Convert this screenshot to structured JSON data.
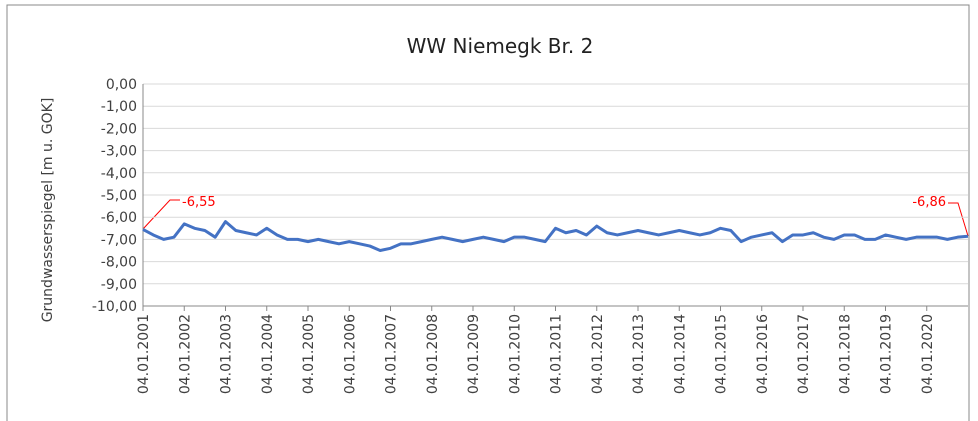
{
  "chart_data": {
    "type": "line",
    "title": "WW Niemegk Br. 2",
    "y_label": "Grundwasserspiegel [m u. GOK]",
    "categories": [
      "04.01.2001",
      null,
      null,
      null,
      "04.01.2002",
      null,
      null,
      null,
      "04.01.2003",
      null,
      null,
      null,
      "04.01.2004",
      null,
      null,
      null,
      "04.01.2005",
      null,
      null,
      null,
      "04.01.2006",
      null,
      null,
      null,
      "04.01.2007",
      null,
      null,
      null,
      "04.01.2008",
      null,
      null,
      null,
      "04.01.2009",
      null,
      null,
      null,
      "04.01.2010",
      null,
      null,
      null,
      "04.01.2011",
      null,
      null,
      null,
      "04.01.2012",
      null,
      null,
      null,
      "04.01.2013",
      null,
      null,
      null,
      "04.01.2014",
      null,
      null,
      null,
      "04.01.2015",
      null,
      null,
      null,
      "04.01.2016",
      null,
      null,
      null,
      "04.01.2017",
      null,
      null,
      null,
      "04.01.2018",
      null,
      null,
      null,
      "04.01.2019",
      null,
      null,
      null,
      "04.01.2020",
      null,
      null,
      null,
      null
    ],
    "values": [
      -6.55,
      -6.8,
      -7.0,
      -6.9,
      -6.3,
      -6.5,
      -6.6,
      -6.9,
      -6.2,
      -6.6,
      -6.7,
      -6.8,
      -6.5,
      -6.8,
      -7.0,
      -7.0,
      -7.1,
      -7.0,
      -7.1,
      -7.2,
      -7.1,
      -7.2,
      -7.3,
      -7.5,
      -7.4,
      -7.2,
      -7.2,
      -7.1,
      -7.0,
      -6.9,
      -7.0,
      -7.1,
      -7.0,
      -6.9,
      -7.0,
      -7.1,
      -6.9,
      -6.9,
      -7.0,
      -7.1,
      -6.5,
      -6.7,
      -6.6,
      -6.8,
      -6.4,
      -6.7,
      -6.8,
      -6.7,
      -6.6,
      -6.7,
      -6.8,
      -6.7,
      -6.6,
      -6.7,
      -6.8,
      -6.7,
      -6.5,
      -6.6,
      -7.1,
      -6.9,
      -6.8,
      -6.7,
      -7.1,
      -6.8,
      -6.8,
      -6.7,
      -6.9,
      -7.0,
      -6.8,
      -6.8,
      -7.0,
      -7.0,
      -6.8,
      -6.9,
      -7.0,
      -6.9,
      -6.9,
      -6.9,
      -7.0,
      -6.9,
      -6.86
    ],
    "value_labels": [
      "-6,55",
      null,
      null,
      null,
      null,
      null,
      null,
      null,
      null,
      null,
      null,
      null,
      null,
      null,
      null,
      null,
      null,
      null,
      null,
      null,
      null,
      null,
      null,
      null,
      null,
      null,
      null,
      null,
      null,
      null,
      null,
      null,
      null,
      null,
      null,
      null,
      null,
      null,
      null,
      null,
      null,
      null,
      null,
      null,
      null,
      null,
      null,
      null,
      null,
      null,
      null,
      null,
      null,
      null,
      null,
      null,
      null,
      null,
      null,
      null,
      null,
      null,
      null,
      null,
      null,
      null,
      null,
      null,
      null,
      null,
      null,
      null,
      null,
      null,
      null,
      null,
      null,
      null,
      null,
      null,
      "-6,86"
    ],
    "color": "#4472c4",
    "label_color": "#ff0000",
    "ylim": [
      -10,
      0
    ],
    "yticks": [
      {
        "value": -10,
        "label": "-10,00"
      },
      {
        "value": -9,
        "label": "-9,00"
      },
      {
        "value": -8,
        "label": "-8,00"
      },
      {
        "value": -7,
        "label": "-7,00"
      },
      {
        "value": -6,
        "label": "-6,00"
      },
      {
        "value": -5,
        "label": "-5,00"
      },
      {
        "value": -4,
        "label": "-4,00"
      },
      {
        "value": -3,
        "label": "-3,00"
      },
      {
        "value": -2,
        "label": "-2,00"
      },
      {
        "value": -1,
        "label": "-1,00"
      },
      {
        "value": 0,
        "label": "0,00"
      }
    ],
    "grid": true
  }
}
